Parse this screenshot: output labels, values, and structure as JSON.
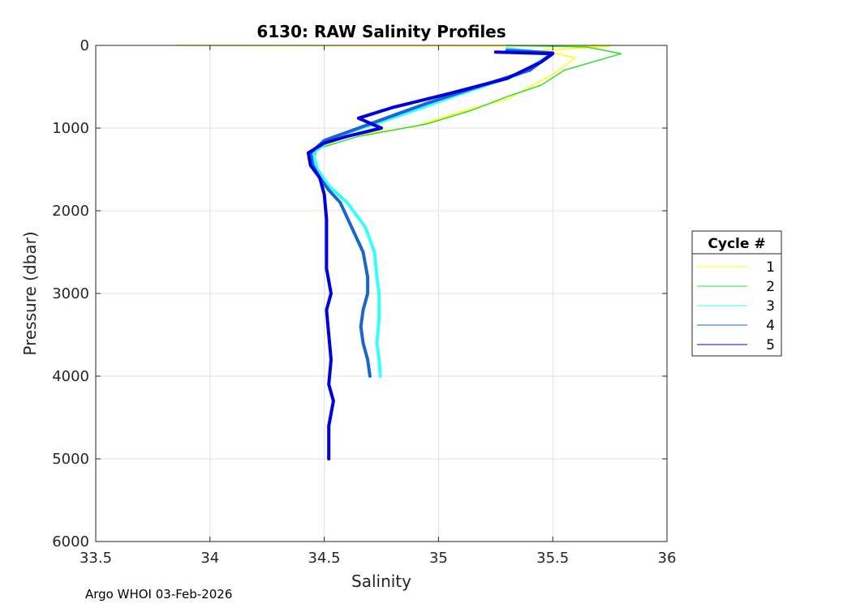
{
  "chart_data": {
    "type": "line",
    "title": "6130: RAW Salinity Profiles",
    "xlabel": "Salinity",
    "ylabel": "Pressure (dbar)",
    "xlim": [
      33.5,
      36
    ],
    "ylim": [
      0,
      6000
    ],
    "y_reversed": true,
    "grid": true,
    "x_ticks": [
      "33.5",
      "34",
      "34.5",
      "35",
      "35.5",
      "36"
    ],
    "y_ticks": [
      "0",
      "1000",
      "2000",
      "3000",
      "4000",
      "5000",
      "6000"
    ],
    "legend": {
      "title": "Cycle #",
      "placement": "outside-right"
    },
    "series": [
      {
        "name": "1",
        "color": "#ffff00",
        "points": [
          [
            33.85,
            0
          ],
          [
            35.75,
            10
          ],
          [
            35.45,
            60
          ],
          [
            35.6,
            150
          ],
          [
            35.5,
            350
          ],
          [
            35.4,
            500
          ],
          [
            35.3,
            650
          ],
          [
            35.1,
            800
          ],
          [
            34.9,
            980
          ],
          [
            34.6,
            1100
          ],
          [
            34.47,
            1250
          ],
          [
            34.45,
            1400
          ],
          [
            34.5,
            1600
          ]
        ]
      },
      {
        "name": "2",
        "color": "#33dd33",
        "points": [
          [
            35.3,
            0
          ],
          [
            35.65,
            20
          ],
          [
            35.8,
            100
          ],
          [
            35.55,
            300
          ],
          [
            35.45,
            480
          ],
          [
            35.3,
            620
          ],
          [
            35.15,
            780
          ],
          [
            34.95,
            950
          ],
          [
            34.65,
            1100
          ],
          [
            34.47,
            1250
          ],
          [
            34.45,
            1400
          ],
          [
            34.5,
            1600
          ]
        ]
      },
      {
        "name": "3",
        "color": "#33ffff",
        "points": [
          [
            35.3,
            40
          ],
          [
            35.5,
            100
          ],
          [
            35.35,
            350
          ],
          [
            35.1,
            580
          ],
          [
            34.88,
            800
          ],
          [
            34.72,
            950
          ],
          [
            34.55,
            1100
          ],
          [
            34.45,
            1300
          ],
          [
            34.47,
            1500
          ],
          [
            34.52,
            1700
          ],
          [
            34.6,
            1900
          ],
          [
            34.68,
            2200
          ],
          [
            34.72,
            2500
          ],
          [
            34.73,
            2800
          ],
          [
            34.74,
            3000
          ],
          [
            34.74,
            3300
          ],
          [
            34.73,
            3600
          ],
          [
            34.74,
            3800
          ],
          [
            34.745,
            4000
          ]
        ]
      },
      {
        "name": "4",
        "color": "#1a66cc",
        "points": [
          [
            35.3,
            60
          ],
          [
            35.5,
            90
          ],
          [
            35.4,
            300
          ],
          [
            35.15,
            520
          ],
          [
            34.95,
            700
          ],
          [
            34.75,
            900
          ],
          [
            34.6,
            1050
          ],
          [
            34.5,
            1150
          ],
          [
            34.44,
            1300
          ],
          [
            34.45,
            1450
          ],
          [
            34.48,
            1600
          ],
          [
            34.52,
            1750
          ],
          [
            34.57,
            1900
          ],
          [
            34.62,
            2200
          ],
          [
            34.67,
            2500
          ],
          [
            34.69,
            2800
          ],
          [
            34.69,
            3000
          ],
          [
            34.67,
            3200
          ],
          [
            34.66,
            3400
          ],
          [
            34.67,
            3600
          ],
          [
            34.69,
            3800
          ],
          [
            34.7,
            4000
          ]
        ]
      },
      {
        "name": "5",
        "color": "#0000dd",
        "points": [
          [
            35.25,
            80
          ],
          [
            35.5,
            100
          ],
          [
            35.45,
            200
          ],
          [
            35.3,
            400
          ],
          [
            35.05,
            580
          ],
          [
            34.8,
            750
          ],
          [
            34.65,
            880
          ],
          [
            34.75,
            1000
          ],
          [
            34.6,
            1100
          ],
          [
            34.5,
            1180
          ],
          [
            34.43,
            1300
          ],
          [
            34.44,
            1450
          ],
          [
            34.48,
            1600
          ],
          [
            34.5,
            1800
          ],
          [
            34.51,
            2100
          ],
          [
            34.51,
            2400
          ],
          [
            34.51,
            2700
          ],
          [
            34.53,
            3000
          ],
          [
            34.51,
            3200
          ],
          [
            34.52,
            3500
          ],
          [
            34.53,
            3800
          ],
          [
            34.52,
            4100
          ],
          [
            34.54,
            4300
          ],
          [
            34.52,
            4600
          ],
          [
            34.52,
            4800
          ],
          [
            34.52,
            5000
          ]
        ]
      }
    ]
  },
  "footer": "Argo WHOI 03-Feb-2026"
}
